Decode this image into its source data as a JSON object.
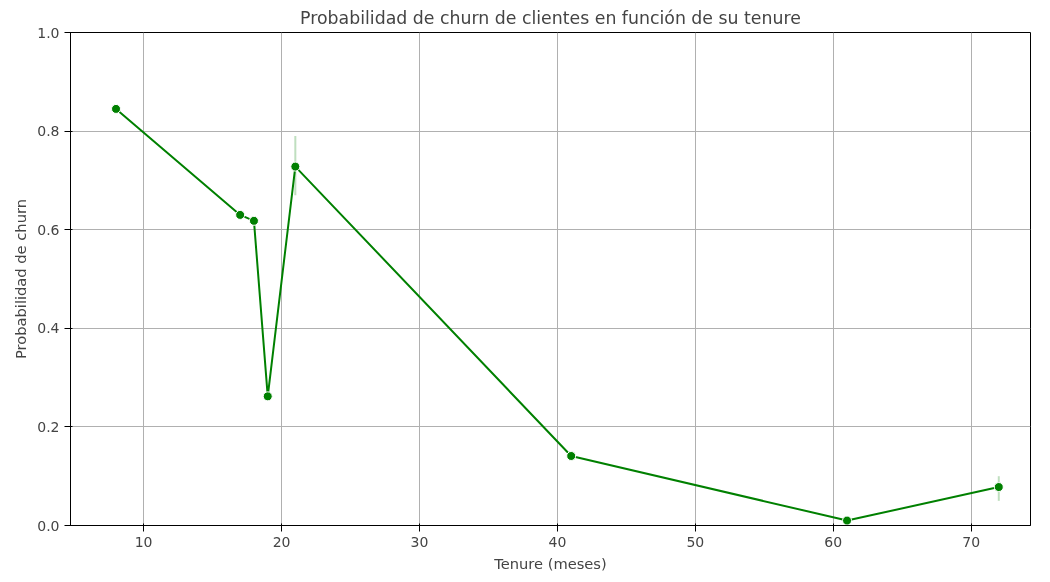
{
  "chart_data": {
    "type": "line",
    "title": "Probabilidad de churn de clientes en función de su tenure",
    "xlabel": "Tenure (meses)",
    "ylabel": "Probabilidad de churn",
    "x": [
      8,
      17,
      18,
      19,
      21,
      41,
      61,
      72
    ],
    "series": [
      {
        "color": "#008000",
        "values": [
          0.845,
          0.63,
          0.618,
          0.262,
          0.728,
          0.141,
          0.01,
          0.078
        ],
        "errors": [
          null,
          null,
          null,
          null,
          [
            0.67,
            0.79
          ],
          null,
          null,
          [
            0.05,
            0.1
          ]
        ]
      }
    ],
    "xlim": [
      4.7,
      74.3
    ],
    "ylim": [
      0,
      1
    ],
    "xticks": [
      10,
      20,
      30,
      40,
      50,
      60,
      70
    ],
    "yticks": [
      {
        "value": 0,
        "label": "0.0"
      },
      0.2,
      0.4,
      0.6,
      0.8,
      {
        "value": 1,
        "label": "1.0"
      }
    ],
    "grid": true,
    "marker": "circle",
    "line_style": "solid"
  }
}
